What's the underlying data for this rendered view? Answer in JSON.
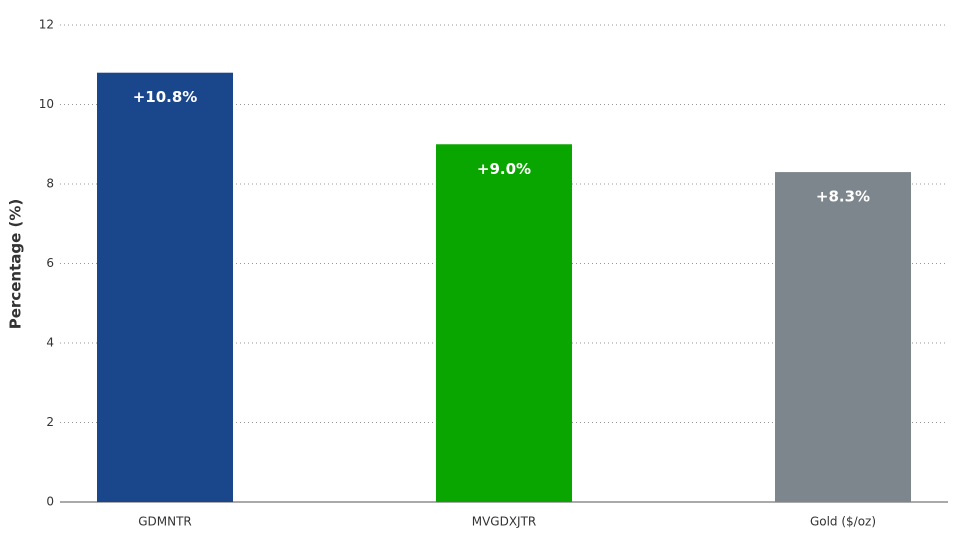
{
  "chart_data": {
    "type": "bar",
    "y_label": "Percentage (%)",
    "categories": [
      "GDMNTR",
      "MVGDXJTR",
      "Gold ($/oz)"
    ],
    "values": [
      10.8,
      9.0,
      8.3
    ],
    "value_labels": [
      "+10.8%",
      "+9.0%",
      "+8.3%"
    ],
    "colors": [
      "#1a468b",
      "#0aa600",
      "#7e868d"
    ],
    "ylim": [
      0,
      12
    ],
    "yticks": [
      0,
      2,
      4,
      6,
      8,
      10,
      12
    ],
    "grid": true
  }
}
